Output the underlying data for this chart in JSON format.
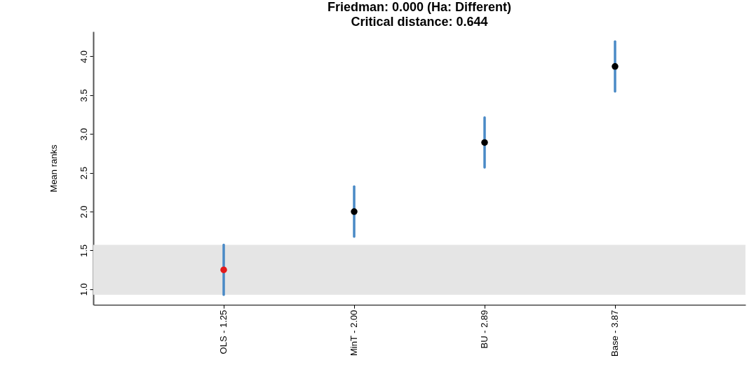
{
  "chart_data": {
    "type": "scatter",
    "title": "Friedman: 0.000 (Ha: Different)",
    "subtitle": "Critical distance: 0.644",
    "ylabel": "Mean ranks",
    "categories": [
      "OLS - 1.25",
      "MinT - 2.00",
      "BU - 2.89",
      "Base - 3.87"
    ],
    "values": [
      1.25,
      2.0,
      2.89,
      3.87
    ],
    "colors": [
      "#e41a1c",
      "#000000",
      "#000000",
      "#000000"
    ],
    "errors": [
      0.322,
      0.322,
      0.322,
      0.322
    ],
    "ylim": [
      0.8,
      4.32
    ],
    "yticks": [
      {
        "value": 1,
        "label": "1.0"
      },
      1.5,
      {
        "value": 2,
        "label": "2.0"
      },
      2.5,
      {
        "value": 3,
        "label": "3.0"
      },
      3.5,
      {
        "value": 4,
        "label": "4.0"
      }
    ],
    "bands": [
      {
        "axis": "y",
        "from": 0.928,
        "to": 1.572,
        "color": "#e5e5e5"
      }
    ],
    "marker": "circle",
    "grid": false
  }
}
